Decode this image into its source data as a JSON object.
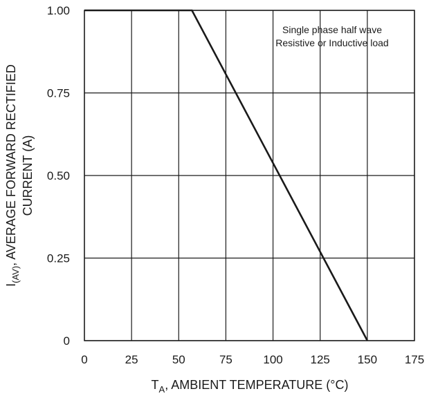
{
  "chart_data": {
    "type": "line",
    "title": "",
    "xlabel": {
      "main": "T",
      "sub": "A",
      "rest": ", AMBIENT TEMPERATURE (°C)"
    },
    "ylabel": {
      "line1_main": "I",
      "line1_sub": "(AV)",
      "line1_rest": ", AVERAGE FORWARD RECTIFIED",
      "line2": "CURRENT (A)"
    },
    "xlim": [
      0,
      175
    ],
    "ylim": [
      0,
      1.0
    ],
    "x_ticks": [
      "0",
      "25",
      "50",
      "75",
      "100",
      "125",
      "150",
      "175"
    ],
    "y_ticks": [
      "0",
      "0.25",
      "0.50",
      "0.75",
      "1.00"
    ],
    "grid": true,
    "annotations": [
      "Single phase half wave",
      "Resistive or Inductive load"
    ],
    "series": [
      {
        "x": [
          0,
          57,
          150
        ],
        "y": [
          1.0,
          1.0,
          0
        ],
        "color": "#1a1a1a"
      }
    ]
  }
}
